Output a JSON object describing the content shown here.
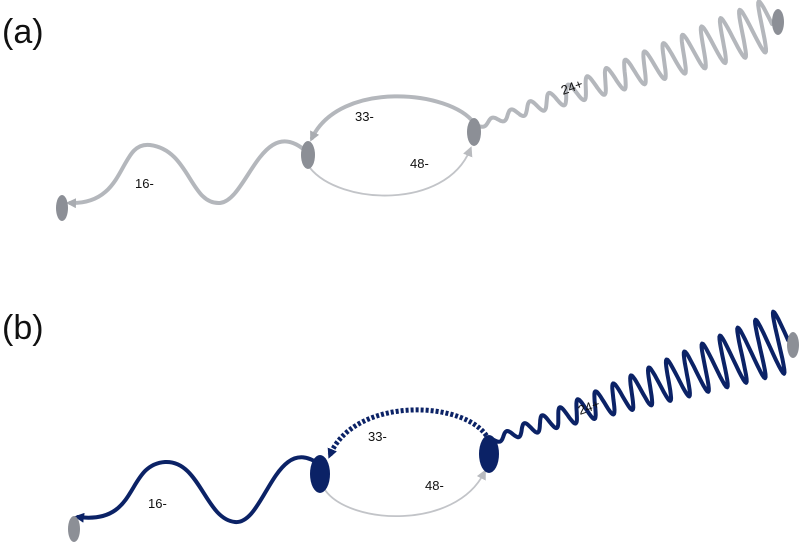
{
  "colors": {
    "grey_edge": "#b4b7bc",
    "grey_node": "#8c8f96",
    "light_edge": "#c2c4c8",
    "navy": "#0b2266",
    "label": "#111111"
  },
  "panels": [
    {
      "label": "(a)",
      "edges": [
        {
          "label": "16-",
          "style": "grey"
        },
        {
          "label": "33-",
          "style": "grey"
        },
        {
          "label": "48-",
          "style": "light"
        },
        {
          "label": "24+",
          "style": "grey"
        }
      ]
    },
    {
      "label": "(b)",
      "edges": [
        {
          "label": "16-",
          "style": "navy"
        },
        {
          "label": "33-",
          "style": "navy-dashed"
        },
        {
          "label": "48-",
          "style": "light"
        },
        {
          "label": "24+",
          "style": "navy"
        }
      ]
    }
  ]
}
